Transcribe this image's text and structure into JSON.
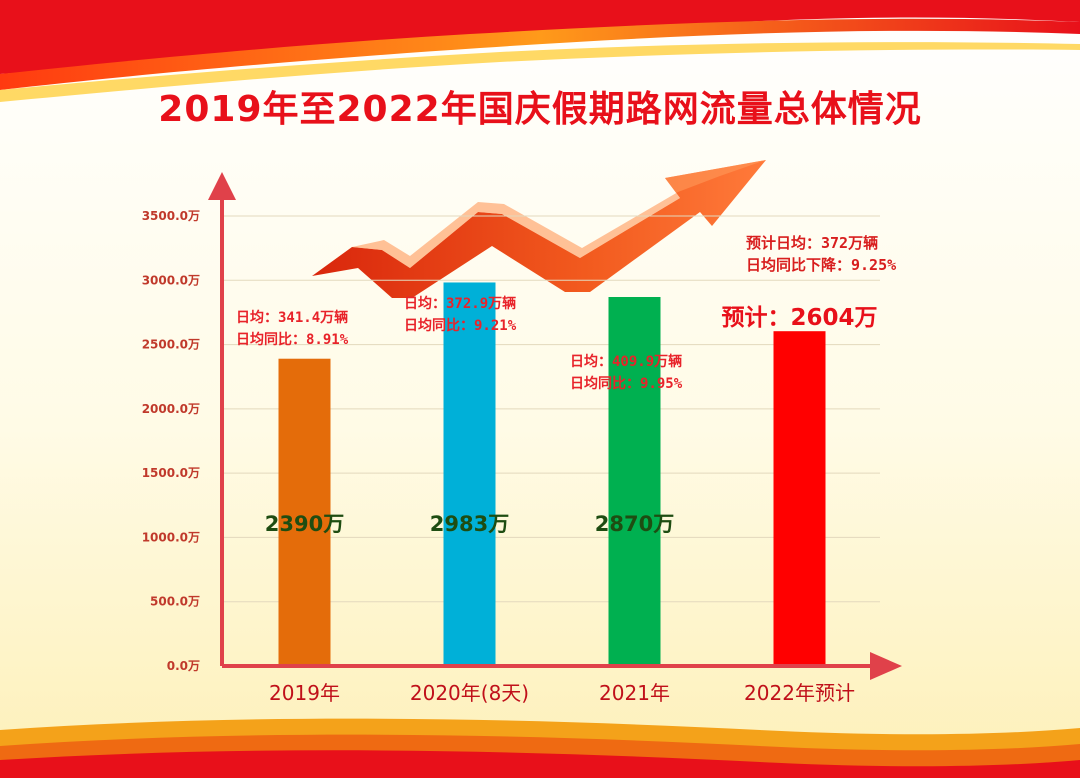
{
  "chart_data": {
    "type": "bar",
    "title": "2019年至2022年国庆假期路网流量总体情况",
    "categories": [
      "2019年",
      "2020年(8天)",
      "2021年",
      "2022年预计"
    ],
    "values": [
      2390,
      2983,
      2870,
      2604
    ],
    "value_labels": [
      "2390万",
      "2983万",
      "2870万",
      "预计：2604万"
    ],
    "colors": [
      "#e46c0a",
      "#00b0d8",
      "#00b050",
      "#ff0000"
    ],
    "y_ticks": [
      "0.0万",
      "500.0万",
      "1000.0万",
      "1500.0万",
      "2000.0万",
      "2500.0万",
      "3000.0万",
      "3500.0万"
    ],
    "ylim": [
      0,
      3500
    ],
    "grid": true,
    "annotations": [
      {
        "line1": "日均：341.4万辆",
        "line2": "日均同比：8.91%"
      },
      {
        "line1": "日均：372.9万辆",
        "line2": "日均同比：9.21%"
      },
      {
        "line1": "日均：409.9万辆",
        "line2": "日均同比：9.95%"
      },
      {
        "line1": "预计日均：372万辆",
        "line2": "日均同比下降：9.25%"
      }
    ]
  }
}
